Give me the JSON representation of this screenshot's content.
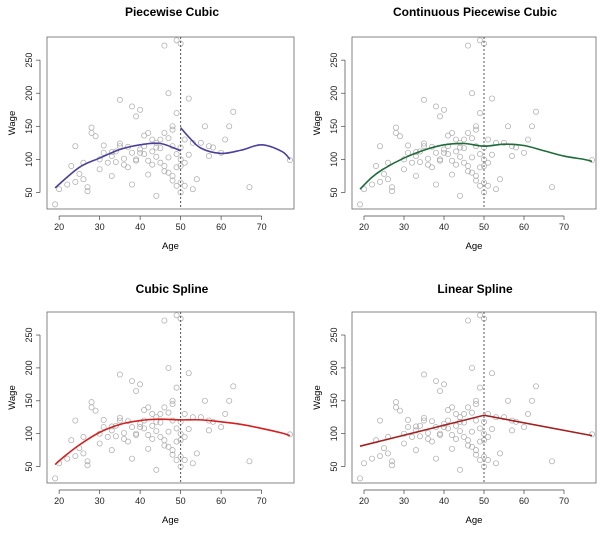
{
  "chart_data": [
    {
      "type": "scatter",
      "title": "Piecewise Cubic",
      "xlabel": "Age",
      "ylabel": "Wage",
      "xlim": [
        17,
        78
      ],
      "ylim": [
        25,
        285
      ],
      "xticks": [
        20,
        30,
        40,
        50,
        60,
        70
      ],
      "yticks": [
        50,
        100,
        150,
        200,
        250
      ],
      "knot": 50,
      "fit_color": "#4a3f9a",
      "fit_segments": [
        {
          "x": [
            19,
            25,
            30,
            35,
            40,
            45,
            50
          ],
          "y": [
            57,
            88,
            102,
            115,
            122,
            124,
            113
          ]
        },
        {
          "x": [
            50,
            52,
            55,
            60,
            65,
            70,
            75,
            77
          ],
          "y": [
            148,
            134,
            117,
            109,
            114,
            122,
            112,
            100
          ]
        }
      ]
    },
    {
      "type": "scatter",
      "title": "Continuous Piecewise Cubic",
      "xlabel": "Age",
      "ylabel": "Wage",
      "xlim": [
        17,
        78
      ],
      "ylim": [
        25,
        285
      ],
      "xticks": [
        20,
        30,
        40,
        50,
        60,
        70
      ],
      "yticks": [
        50,
        100,
        150,
        200,
        250
      ],
      "knot": 50,
      "fit_color": "#1f6b3a",
      "fit_segments": [
        {
          "x": [
            19,
            22,
            25,
            30,
            35,
            40,
            45,
            50,
            55,
            60,
            65,
            70,
            75,
            77
          ],
          "y": [
            55,
            73,
            86,
            102,
            114,
            122,
            124,
            120,
            123,
            121,
            113,
            105,
            100,
            97
          ]
        }
      ]
    },
    {
      "type": "scatter",
      "title": "Cubic Spline",
      "xlabel": "Age",
      "ylabel": "Wage",
      "xlim": [
        17,
        78
      ],
      "ylim": [
        25,
        285
      ],
      "xticks": [
        20,
        30,
        40,
        50,
        60,
        70
      ],
      "yticks": [
        50,
        100,
        150,
        200,
        250
      ],
      "knot": 50,
      "fit_color": "#d42020",
      "fit_segments": [
        {
          "x": [
            19,
            21,
            25,
            30,
            35,
            40,
            45,
            50,
            55,
            60,
            65,
            70,
            75,
            77
          ],
          "y": [
            53,
            64,
            83,
            102,
            114,
            120,
            122,
            121,
            121,
            118,
            114,
            108,
            101,
            97
          ]
        }
      ]
    },
    {
      "type": "scatter",
      "title": "Linear Spline",
      "xlabel": "Age",
      "ylabel": "Wage",
      "xlim": [
        17,
        78
      ],
      "ylim": [
        25,
        285
      ],
      "xticks": [
        20,
        30,
        40,
        50,
        60,
        70
      ],
      "yticks": [
        50,
        100,
        150,
        200,
        250
      ],
      "knot": 50,
      "fit_color": "#a31f1f",
      "fit_segments": [
        {
          "x": [
            19,
            50,
            77
          ],
          "y": [
            81,
            128,
            97
          ]
        }
      ]
    }
  ],
  "points": {
    "x": [
      19,
      20,
      22,
      23,
      24,
      25,
      26,
      27,
      28,
      28,
      29,
      30,
      31,
      32,
      33,
      33,
      34,
      35,
      35,
      36,
      37,
      38,
      38,
      39,
      39,
      40,
      40,
      41,
      41,
      42,
      42,
      43,
      43,
      44,
      44,
      45,
      45,
      46,
      46,
      46,
      47,
      47,
      47,
      48,
      48,
      48,
      48,
      49,
      49,
      49,
      49,
      50,
      50,
      50,
      50,
      50,
      51,
      51,
      52,
      53,
      54,
      55,
      56,
      57,
      58,
      60,
      61,
      62,
      63,
      67,
      77,
      30,
      36,
      40,
      44,
      38,
      42,
      34,
      26,
      24,
      31,
      45,
      47,
      43,
      52,
      57,
      48,
      50,
      39,
      41,
      46,
      49,
      27,
      33,
      35,
      37,
      44,
      51,
      53
    ],
    "y": [
      32,
      55,
      62,
      90,
      120,
      78,
      95,
      52,
      140,
      148,
      135,
      85,
      110,
      95,
      75,
      105,
      112,
      190,
      120,
      92,
      88,
      180,
      110,
      165,
      100,
      175,
      115,
      120,
      108,
      140,
      98,
      112,
      130,
      125,
      45,
      130,
      95,
      140,
      90,
      272,
      132,
      80,
      103,
      75,
      68,
      145,
      120,
      170,
      88,
      280,
      60,
      50,
      100,
      118,
      90,
      275,
      95,
      130,
      192,
      55,
      70,
      125,
      150,
      120,
      118,
      110,
      130,
      150,
      172,
      58,
      99,
      100,
      101,
      110,
      104,
      62,
      77,
      96,
      70,
      66,
      121,
      117,
      200,
      92,
      107,
      105,
      150,
      65,
      98,
      136,
      82,
      108,
      58,
      111,
      124,
      119,
      118,
      60,
      125
    ]
  }
}
